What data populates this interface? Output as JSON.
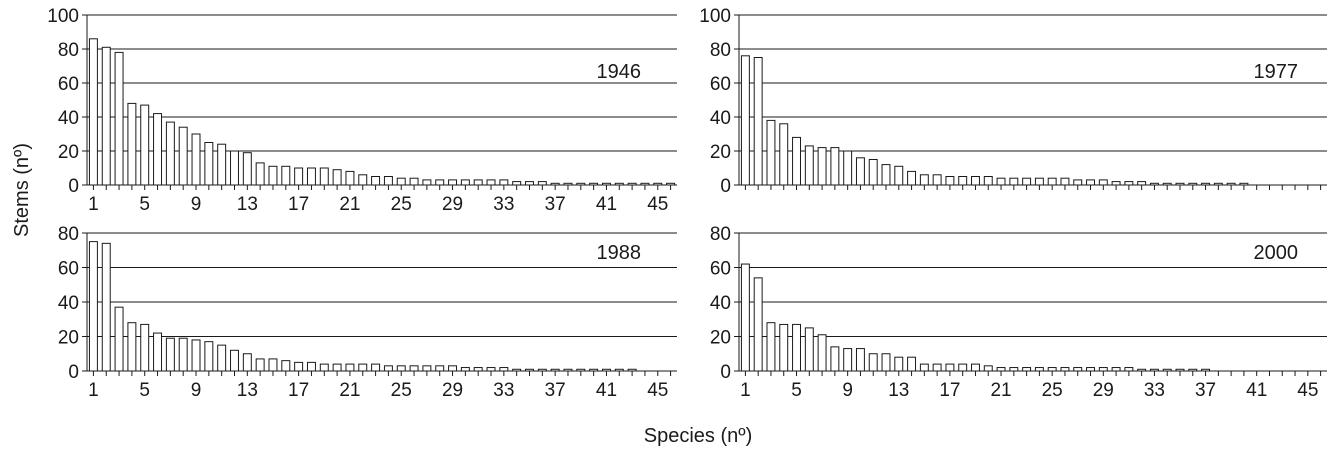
{
  "figure": {
    "ylabel": "Stems (nº)",
    "xlabel": "Species (nº)"
  },
  "chart_data": [
    {
      "type": "bar",
      "panel_label": "1946",
      "ylim": [
        0,
        100
      ],
      "yticks": [
        "0",
        "20",
        "40",
        "60",
        "80",
        "100"
      ],
      "xticks": [
        "1",
        "5",
        "9",
        "13",
        "17",
        "21",
        "25",
        "29",
        "33",
        "37",
        "41",
        "45"
      ],
      "grid": true,
      "x": [
        1,
        2,
        3,
        4,
        5,
        6,
        7,
        8,
        9,
        10,
        11,
        12,
        13,
        14,
        15,
        16,
        17,
        18,
        19,
        20,
        21,
        22,
        23,
        24,
        25,
        26,
        27,
        28,
        29,
        30,
        31,
        32,
        33,
        34,
        35,
        36,
        37,
        38,
        39,
        40,
        41,
        42,
        43,
        44,
        45,
        46
      ],
      "values": [
        86,
        81,
        78,
        48,
        47,
        42,
        37,
        34,
        30,
        25,
        24,
        20,
        19,
        13,
        11,
        11,
        10,
        10,
        10,
        9,
        8,
        6,
        5,
        5,
        4,
        4,
        3,
        3,
        3,
        3,
        3,
        3,
        3,
        2,
        2,
        2,
        1,
        1,
        1,
        1,
        1,
        1,
        1,
        1,
        1,
        1
      ]
    },
    {
      "type": "bar",
      "panel_label": "1977",
      "ylim": [
        0,
        100
      ],
      "yticks": [
        "0",
        "20",
        "40",
        "60",
        "80",
        "100"
      ],
      "xticks": [],
      "grid": true,
      "x": [
        1,
        2,
        3,
        4,
        5,
        6,
        7,
        8,
        9,
        10,
        11,
        12,
        13,
        14,
        15,
        16,
        17,
        18,
        19,
        20,
        21,
        22,
        23,
        24,
        25,
        26,
        27,
        28,
        29,
        30,
        31,
        32,
        33,
        34,
        35,
        36,
        37,
        38,
        39,
        40,
        41,
        42,
        43,
        44,
        45,
        46
      ],
      "values": [
        76,
        75,
        38,
        36,
        28,
        23,
        22,
        22,
        20,
        16,
        15,
        12,
        11,
        8,
        6,
        6,
        5,
        5,
        5,
        5,
        4,
        4,
        4,
        4,
        4,
        4,
        3,
        3,
        3,
        2,
        2,
        2,
        1,
        1,
        1,
        1,
        1,
        1,
        1,
        1,
        0,
        0,
        0,
        0,
        0,
        0
      ]
    },
    {
      "type": "bar",
      "panel_label": "1988",
      "ylim": [
        0,
        80
      ],
      "yticks": [
        "0",
        "20",
        "40",
        "60",
        "80"
      ],
      "xticks": [
        "1",
        "5",
        "9",
        "13",
        "17",
        "21",
        "25",
        "29",
        "33",
        "37",
        "41",
        "45"
      ],
      "grid": true,
      "x": [
        1,
        2,
        3,
        4,
        5,
        6,
        7,
        8,
        9,
        10,
        11,
        12,
        13,
        14,
        15,
        16,
        17,
        18,
        19,
        20,
        21,
        22,
        23,
        24,
        25,
        26,
        27,
        28,
        29,
        30,
        31,
        32,
        33,
        34,
        35,
        36,
        37,
        38,
        39,
        40,
        41,
        42,
        43,
        44,
        45,
        46
      ],
      "values": [
        75,
        74,
        37,
        28,
        27,
        22,
        19,
        19,
        18,
        17,
        15,
        12,
        10,
        7,
        7,
        6,
        5,
        5,
        4,
        4,
        4,
        4,
        4,
        3,
        3,
        3,
        3,
        3,
        3,
        2,
        2,
        2,
        2,
        1,
        1,
        1,
        1,
        1,
        1,
        1,
        1,
        1,
        1,
        0,
        0,
        0
      ]
    },
    {
      "type": "bar",
      "panel_label": "2000",
      "ylim": [
        0,
        80
      ],
      "yticks": [
        "0",
        "20",
        "40",
        "60",
        "80"
      ],
      "xticks": [
        "1",
        "5",
        "9",
        "13",
        "17",
        "21",
        "25",
        "29",
        "33",
        "37",
        "41",
        "45"
      ],
      "grid": true,
      "x": [
        1,
        2,
        3,
        4,
        5,
        6,
        7,
        8,
        9,
        10,
        11,
        12,
        13,
        14,
        15,
        16,
        17,
        18,
        19,
        20,
        21,
        22,
        23,
        24,
        25,
        26,
        27,
        28,
        29,
        30,
        31,
        32,
        33,
        34,
        35,
        36,
        37,
        38,
        39,
        40,
        41,
        42,
        43,
        44,
        45,
        46
      ],
      "values": [
        62,
        54,
        28,
        27,
        27,
        25,
        21,
        14,
        13,
        13,
        10,
        10,
        8,
        8,
        4,
        4,
        4,
        4,
        4,
        3,
        2,
        2,
        2,
        2,
        2,
        2,
        2,
        2,
        2,
        2,
        2,
        1,
        1,
        1,
        1,
        1,
        1,
        0,
        0,
        0,
        0,
        0,
        0,
        0,
        0,
        0
      ]
    }
  ]
}
